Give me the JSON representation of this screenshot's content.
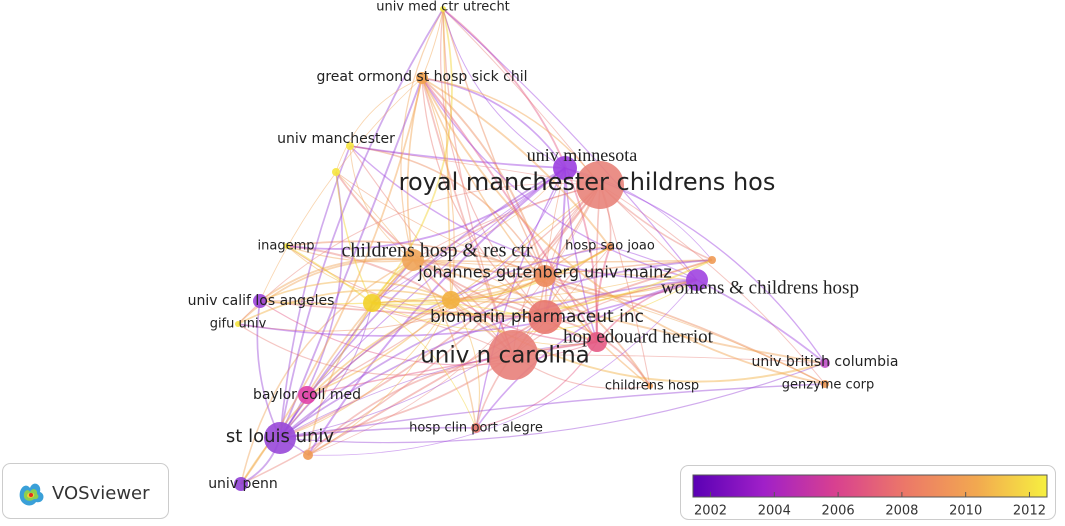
{
  "nodes": [
    {
      "label": "univ med ctr utrecht",
      "color": "#f4e84a"
    },
    {
      "label": "great ormond st hosp sick chil",
      "color": "#f2a24e"
    },
    {
      "label": "univ manchester",
      "color": "#f6e640"
    },
    {
      "label": "univ minnesota",
      "color": "#9b3fe0"
    },
    {
      "label": "royal manchester childrens hos",
      "color": "#e8837a"
    },
    {
      "label": "inagemp",
      "color": "#f6e640"
    },
    {
      "label": "childrens hosp & res ctr",
      "color": "#f0a458"
    },
    {
      "label": "hosp sao joao",
      "color": "#ee9256"
    },
    {
      "label": "johannes gutenberg univ mainz",
      "color": "#ec8a5c"
    },
    {
      "label": "womens & childrens hosp",
      "color": "#a044e0"
    },
    {
      "label": "univ calif los angeles",
      "color": "#9a42d8"
    },
    {
      "label": "gifu univ",
      "color": "#f6e640"
    },
    {
      "label": "biomarin pharmaceut inc",
      "color": "#e87870"
    },
    {
      "label": "hop edouard herriot",
      "color": "#e45a84"
    },
    {
      "label": "univ n carolina",
      "color": "#e8807a"
    },
    {
      "label": "univ british columbia",
      "color": "#c050c8"
    },
    {
      "label": "childrens hosp",
      "color": "#f09a54"
    },
    {
      "label": "genzyme corp",
      "color": "#f09a54"
    },
    {
      "label": "baylor coll med",
      "color": "#e040a8"
    },
    {
      "label": "hosp clin port alegre",
      "color": "#e8786a"
    },
    {
      "label": "st louis univ",
      "color": "#9848d8"
    },
    {
      "label": "univ penn",
      "color": "#9040d4"
    }
  ],
  "logo": {
    "text": "VOSviewer"
  },
  "colorbar": {
    "range": [
      2001.45,
      2012.55
    ],
    "ticks": [
      2002,
      2004,
      2006,
      2008,
      2010,
      2012
    ],
    "colors": [
      "#5a00b4",
      "#a020c8",
      "#d84090",
      "#ec7868",
      "#f2a850",
      "#f6f040"
    ]
  }
}
